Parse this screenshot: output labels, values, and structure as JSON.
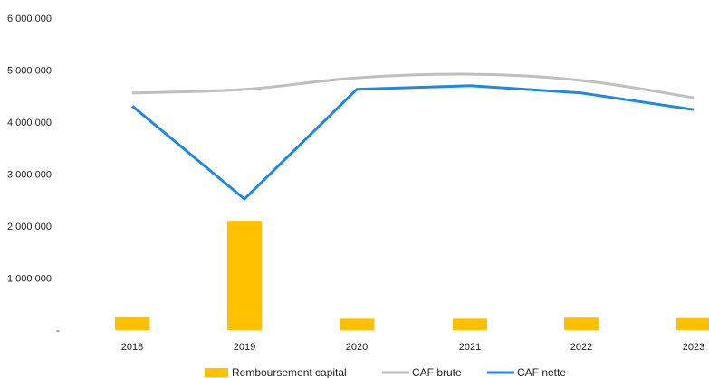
{
  "chart_data": {
    "type": "bar+line",
    "title": "",
    "xlabel": "",
    "ylabel": "",
    "categories": [
      "2018",
      "2019",
      "2020",
      "2021",
      "2022",
      "2023"
    ],
    "y_ticks": [
      "-",
      "1 000 000",
      "2 000 000",
      "3 000 000",
      "4 000 000",
      "5 000 000",
      "6 000 000"
    ],
    "ylim": [
      0,
      6000000
    ],
    "grid": false,
    "legend_position": "bottom",
    "series": [
      {
        "name": "Remboursement capital",
        "type": "bar",
        "color": "#FFC000",
        "values": [
          250000,
          2100000,
          220000,
          220000,
          240000,
          230000
        ]
      },
      {
        "name": "CAF brute",
        "type": "line",
        "color": "#BFBFBF",
        "values": [
          4560000,
          4630000,
          4850000,
          4920000,
          4800000,
          4470000
        ]
      },
      {
        "name": "CAF nette",
        "type": "line",
        "color": "#1E88E5",
        "values": [
          4310000,
          2520000,
          4630000,
          4700000,
          4560000,
          4240000
        ]
      }
    ]
  }
}
